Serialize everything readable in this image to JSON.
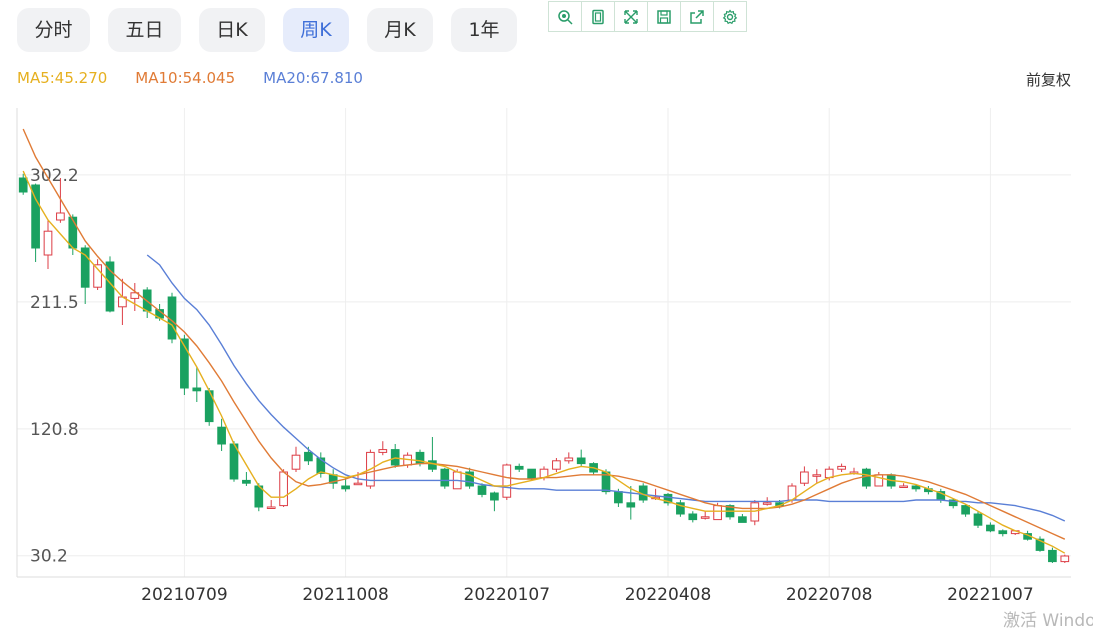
{
  "tabs": [
    {
      "label": "分时",
      "active": false
    },
    {
      "label": "五日",
      "active": false
    },
    {
      "label": "日K",
      "active": false
    },
    {
      "label": "周K",
      "active": true
    },
    {
      "label": "月K",
      "active": false
    },
    {
      "label": "1年",
      "active": false
    }
  ],
  "toolbar": {
    "icons": [
      "zoom-icon",
      "copy-icon",
      "fullscreen-icon",
      "save-icon",
      "share-icon",
      "settings-icon"
    ],
    "color": "#2a9d6a"
  },
  "legend": {
    "ma5": "MA5:45.270",
    "ma10": "MA10:54.045",
    "ma20": "MA20:67.810",
    "colors": {
      "ma5": "#e6b020",
      "ma10": "#e07b36",
      "ma20": "#5a7fd6"
    }
  },
  "adjust_label": "前复权",
  "watermark": "激活 Windows",
  "chart_data": {
    "type": "candlestick",
    "y_ticks": [
      "302.2",
      "211.5",
      "120.8",
      "30.2"
    ],
    "y_tick_values": [
      302.2,
      211.5,
      120.8,
      30.2
    ],
    "x_ticks": [
      "20210709",
      "20211008",
      "20220107",
      "20220408",
      "20220708",
      "20221007"
    ],
    "x_tick_index": [
      13,
      26,
      39,
      52,
      65,
      78
    ],
    "ylim": [
      15,
      350
    ],
    "colors": {
      "up": "#dc3c45",
      "down": "#1aa160",
      "grid": "#eeeeee",
      "axis": "#555555"
    },
    "candles": [
      [
        300,
        290,
        303,
        288
      ],
      [
        295,
        250,
        296,
        240
      ],
      [
        245,
        262,
        270,
        235
      ],
      [
        270,
        275,
        300,
        268
      ],
      [
        272,
        250,
        274,
        245
      ],
      [
        250,
        222,
        252,
        210
      ],
      [
        222,
        238,
        242,
        220
      ],
      [
        240,
        205,
        244,
        204
      ],
      [
        208,
        215,
        228,
        195
      ],
      [
        214,
        218,
        225,
        205
      ],
      [
        220,
        205,
        222,
        200
      ],
      [
        206,
        200,
        210,
        198
      ],
      [
        215,
        185,
        218,
        182
      ],
      [
        185,
        150,
        188,
        145
      ],
      [
        150,
        148,
        165,
        140
      ],
      [
        148,
        126,
        150,
        123
      ],
      [
        122,
        110,
        128,
        105
      ],
      [
        110,
        85,
        112,
        83
      ],
      [
        84,
        82,
        90,
        80
      ],
      [
        80,
        65,
        82,
        62
      ],
      [
        65,
        65,
        70,
        65
      ],
      [
        66,
        90,
        92,
        65
      ],
      [
        92,
        102,
        108,
        90
      ],
      [
        104,
        98,
        108,
        95
      ],
      [
        100,
        89,
        104,
        86
      ],
      [
        88,
        82,
        92,
        78
      ],
      [
        80,
        78,
        86,
        76
      ],
      [
        82,
        82,
        90,
        82
      ],
      [
        80,
        104,
        106,
        78
      ],
      [
        104,
        106,
        112,
        102
      ],
      [
        106,
        95,
        110,
        93
      ],
      [
        95,
        102,
        104,
        93
      ],
      [
        104,
        96,
        106,
        94
      ],
      [
        98,
        92,
        115,
        90
      ],
      [
        92,
        80,
        93,
        78
      ],
      [
        78,
        90,
        92,
        78
      ],
      [
        90,
        80,
        93,
        78
      ],
      [
        80,
        74,
        82,
        72
      ],
      [
        75,
        70,
        76,
        62
      ],
      [
        72,
        95,
        96,
        70
      ],
      [
        94,
        92,
        96,
        90
      ],
      [
        92,
        85,
        92,
        84
      ],
      [
        86,
        92,
        94,
        84
      ],
      [
        92,
        98,
        100,
        90
      ],
      [
        98,
        100,
        104,
        96
      ],
      [
        100,
        96,
        106,
        94
      ],
      [
        96,
        90,
        97,
        88
      ],
      [
        90,
        76,
        92,
        74
      ],
      [
        76,
        68,
        78,
        65
      ],
      [
        68,
        65,
        80,
        56
      ],
      [
        80,
        70,
        82,
        68
      ],
      [
        72,
        72,
        78,
        70
      ],
      [
        74,
        68,
        75,
        66
      ],
      [
        68,
        60,
        70,
        58
      ],
      [
        60,
        56,
        62,
        54
      ],
      [
        58,
        58,
        62,
        56
      ],
      [
        56,
        66,
        68,
        56
      ],
      [
        66,
        58,
        67,
        56
      ],
      [
        58,
        54,
        60,
        54
      ],
      [
        55,
        68,
        70,
        52
      ],
      [
        68,
        68,
        72,
        66
      ],
      [
        68,
        66,
        70,
        64
      ],
      [
        70,
        80,
        82,
        68
      ],
      [
        82,
        90,
        94,
        80
      ],
      [
        88,
        88,
        92,
        82
      ],
      [
        86,
        92,
        94,
        84
      ],
      [
        92,
        94,
        96,
        90
      ],
      [
        90,
        90,
        93,
        88
      ],
      [
        92,
        80,
        93,
        78
      ],
      [
        80,
        88,
        90,
        80
      ],
      [
        88,
        80,
        89,
        78
      ],
      [
        80,
        80,
        82,
        80
      ],
      [
        80,
        78,
        81,
        76
      ],
      [
        78,
        76,
        80,
        74
      ],
      [
        76,
        70,
        78,
        68
      ],
      [
        70,
        66,
        71,
        64
      ],
      [
        66,
        60,
        67,
        58
      ],
      [
        60,
        52,
        62,
        50
      ],
      [
        52,
        48,
        54,
        47
      ],
      [
        48,
        46,
        49,
        44
      ],
      [
        46,
        48,
        48,
        45
      ],
      [
        46,
        42,
        48,
        41
      ],
      [
        42,
        34,
        44,
        33
      ],
      [
        34,
        26,
        36,
        25
      ],
      [
        26,
        30,
        31,
        25
      ]
    ],
    "ma5": [
      305,
      285,
      270,
      260,
      250,
      245,
      235,
      225,
      215,
      210,
      205,
      200,
      195,
      180,
      165,
      148,
      130,
      110,
      95,
      80,
      72,
      72,
      78,
      85,
      90,
      88,
      86,
      88,
      92,
      97,
      100,
      99,
      98,
      96,
      94,
      90,
      88,
      84,
      80,
      80,
      82,
      84,
      86,
      89,
      92,
      94,
      93,
      90,
      84,
      78,
      74,
      71,
      69,
      66,
      64,
      62,
      62,
      62,
      62,
      62,
      64,
      66,
      70,
      76,
      82,
      86,
      88,
      89,
      88,
      86,
      84,
      83,
      81,
      78,
      75,
      71,
      67,
      62,
      57,
      52,
      48,
      45,
      41,
      37,
      32
    ],
    "ma10": [
      335,
      315,
      300,
      285,
      270,
      255,
      244,
      234,
      226,
      219,
      212,
      205,
      198,
      190,
      180,
      168,
      155,
      140,
      126,
      112,
      100,
      90,
      83,
      80,
      81,
      83,
      85,
      88,
      90,
      92,
      94,
      95,
      96,
      96,
      95,
      94,
      92,
      90,
      88,
      86,
      85,
      85,
      86,
      86,
      87,
      88,
      88,
      88,
      87,
      85,
      83,
      80,
      77,
      74,
      71,
      68,
      66,
      65,
      64,
      64,
      64,
      65,
      67,
      70,
      74,
      78,
      82,
      85,
      87,
      88,
      88,
      87,
      85,
      83,
      80,
      77,
      74,
      70,
      66,
      62,
      58,
      54,
      50,
      46,
      42
    ],
    "ma20": [
      null,
      null,
      null,
      null,
      null,
      null,
      null,
      null,
      null,
      null,
      245,
      238,
      225,
      214,
      206,
      195,
      181,
      166,
      153,
      141,
      131,
      122,
      114,
      106,
      99,
      93,
      88,
      85,
      84,
      84,
      84,
      84,
      84,
      84,
      84,
      84,
      83,
      81,
      80,
      79,
      78,
      78,
      78,
      77,
      77,
      77,
      77,
      77,
      76,
      75,
      74,
      73,
      72,
      71,
      70,
      69,
      69,
      69,
      69,
      69,
      69,
      69,
      70,
      70,
      70,
      69,
      69,
      69,
      69,
      69,
      69,
      69,
      70,
      70,
      70,
      69,
      69,
      68,
      68,
      67,
      66,
      64,
      62,
      59,
      55
    ]
  }
}
